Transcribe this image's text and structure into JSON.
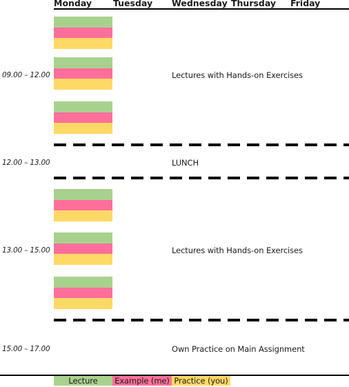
{
  "header": {
    "days": [
      "Monday",
      "Tuesday",
      "Wednesday",
      "Thursday",
      "Friday"
    ]
  },
  "sessions": [
    {
      "time": "09.00 – 12.00",
      "label": "Lectures with Hands-on Exercises"
    },
    {
      "time": "12.00 – 13.00",
      "label": "LUNCH"
    },
    {
      "time": "13.00 – 15.00",
      "label": "Lectures with Hands-on Exercises"
    },
    {
      "time": "15.00 – 17.00",
      "label": "Own Practice on Main Assignment"
    }
  ],
  "legend": [
    {
      "label": "Lecture",
      "color": "#a9d18e"
    },
    {
      "label": "Example (me)",
      "color": "#ff6f9b"
    },
    {
      "label": "Practice (you)",
      "color": "#ffd966"
    }
  ],
  "colors": {
    "lecture": "#a9d18e",
    "example": "#ff6f9b",
    "practice": "#ffd966"
  }
}
